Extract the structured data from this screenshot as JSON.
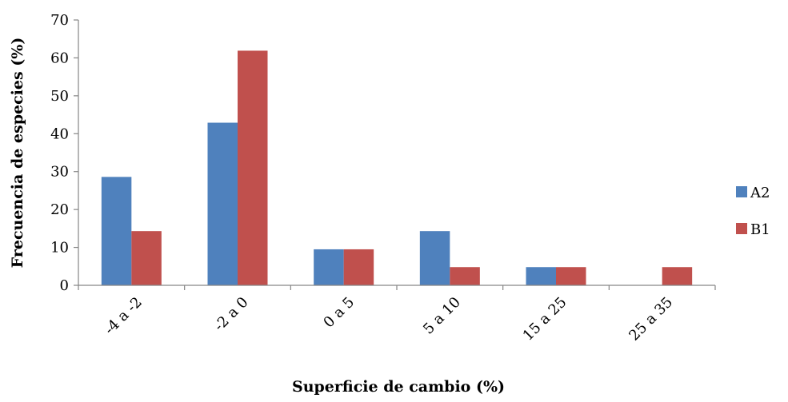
{
  "chart_data": {
    "type": "bar",
    "title": "",
    "xlabel": "Superficie de cambio (%)",
    "ylabel": "Frecuencia de especies (%)",
    "ylim": [
      0,
      70
    ],
    "yticks": [
      0,
      10,
      20,
      30,
      40,
      50,
      60,
      70
    ],
    "grid": false,
    "legend_position": "right",
    "categories": [
      "-4 a -2",
      "-2 a 0",
      "0 a 5",
      "5 a 10",
      "15 a 25",
      "25 a 35"
    ],
    "series": [
      {
        "name": "A2",
        "color": "#4f81bd",
        "values": [
          28.6,
          42.9,
          9.5,
          14.3,
          4.8,
          0
        ]
      },
      {
        "name": "B1",
        "color": "#c0504d",
        "values": [
          14.3,
          61.9,
          9.5,
          4.8,
          4.8,
          4.8
        ]
      }
    ]
  }
}
